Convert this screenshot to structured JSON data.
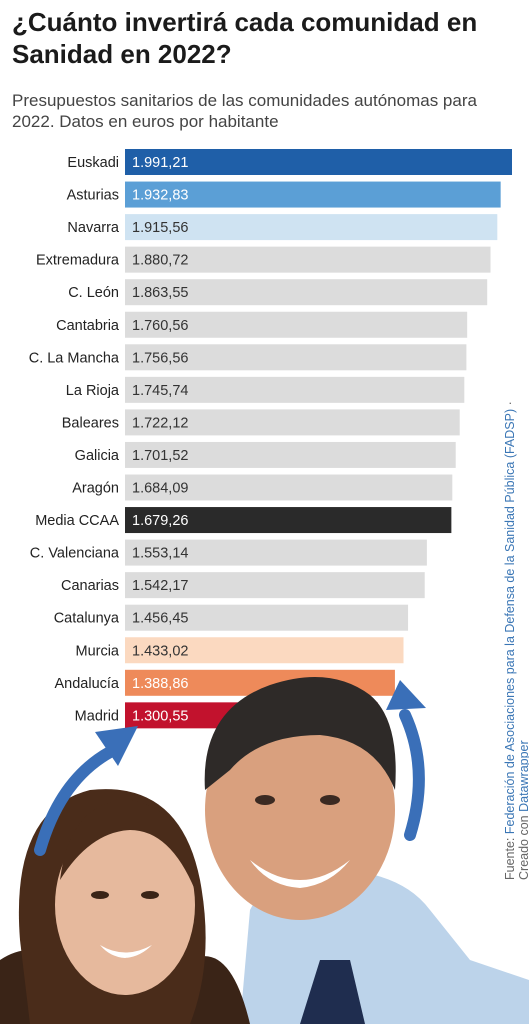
{
  "title": "¿Cuánto invertirá cada comunidad en Sanidad en 2022?",
  "subtitle": "Presupuestos sanitarios de las comunidades autónomas para 2022. Datos en euros por habitante",
  "source": {
    "prefix": "Fuente: ",
    "org": "Federación de Asociaciones para la Defensa de la Sanidad Pública (FADSP)",
    "sep": " · Creado con ",
    "tool": "Datawrapper"
  },
  "colors": {
    "default": "#dcdcdc",
    "euskadi": "#1f5fa8",
    "asturias": "#5b9fd6",
    "navarra": "#cfe3f2",
    "media": "#2a2a2a",
    "murcia": "#fbd9c0",
    "andalucia": "#ee8a5a",
    "madrid": "#c2122d",
    "arrow": "#3a6fb8"
  },
  "chart_data": {
    "type": "bar",
    "orientation": "horizontal",
    "title": "¿Cuánto invertirá cada comunidad en Sanidad en 2022?",
    "subtitle": "Presupuestos sanitarios de las comunidades autónomas para 2022. Datos en euros por habitante",
    "categories": [
      "Euskadi",
      "Asturias",
      "Navarra",
      "Extremadura",
      "C. León",
      "Cantabria",
      "C. La Mancha",
      "La Rioja",
      "Baleares",
      "Galicia",
      "Aragón",
      "Media CCAA",
      "C. Valenciana",
      "Canarias",
      "Catalunya",
      "Murcia",
      "Andalucía",
      "Madrid"
    ],
    "values": [
      1991.21,
      1932.83,
      1915.56,
      1880.72,
      1863.55,
      1760.56,
      1756.56,
      1745.74,
      1722.12,
      1701.52,
      1684.09,
      1679.26,
      1553.14,
      1542.17,
      1456.45,
      1433.02,
      1388.86,
      1300.55
    ],
    "labels": [
      "1.991,21",
      "1.932,83",
      "1.915,56",
      "1.880,72",
      "1.863,55",
      "1.760,56",
      "1.756,56",
      "1.745,74",
      "1.722,12",
      "1.701,52",
      "1.684,09",
      "1.679,26",
      "1.553,14",
      "1.542,17",
      "1.456,45",
      "1.433,02",
      "1.388,86",
      "1.300,55"
    ],
    "bar_colors": [
      "euskadi",
      "asturias",
      "navarra",
      "default",
      "default",
      "default",
      "default",
      "default",
      "default",
      "default",
      "default",
      "media",
      "default",
      "default",
      "default",
      "murcia",
      "andalucia",
      "madrid"
    ],
    "label_colors": [
      "#ffffff",
      "#ffffff",
      "#333333",
      "#333333",
      "#333333",
      "#333333",
      "#333333",
      "#333333",
      "#333333",
      "#333333",
      "#333333",
      "#ffffff",
      "#333333",
      "#333333",
      "#333333",
      "#333333",
      "#ffffff",
      "#ffffff"
    ],
    "xlim": [
      0,
      1991.21
    ],
    "grid": false,
    "legend": "none"
  }
}
